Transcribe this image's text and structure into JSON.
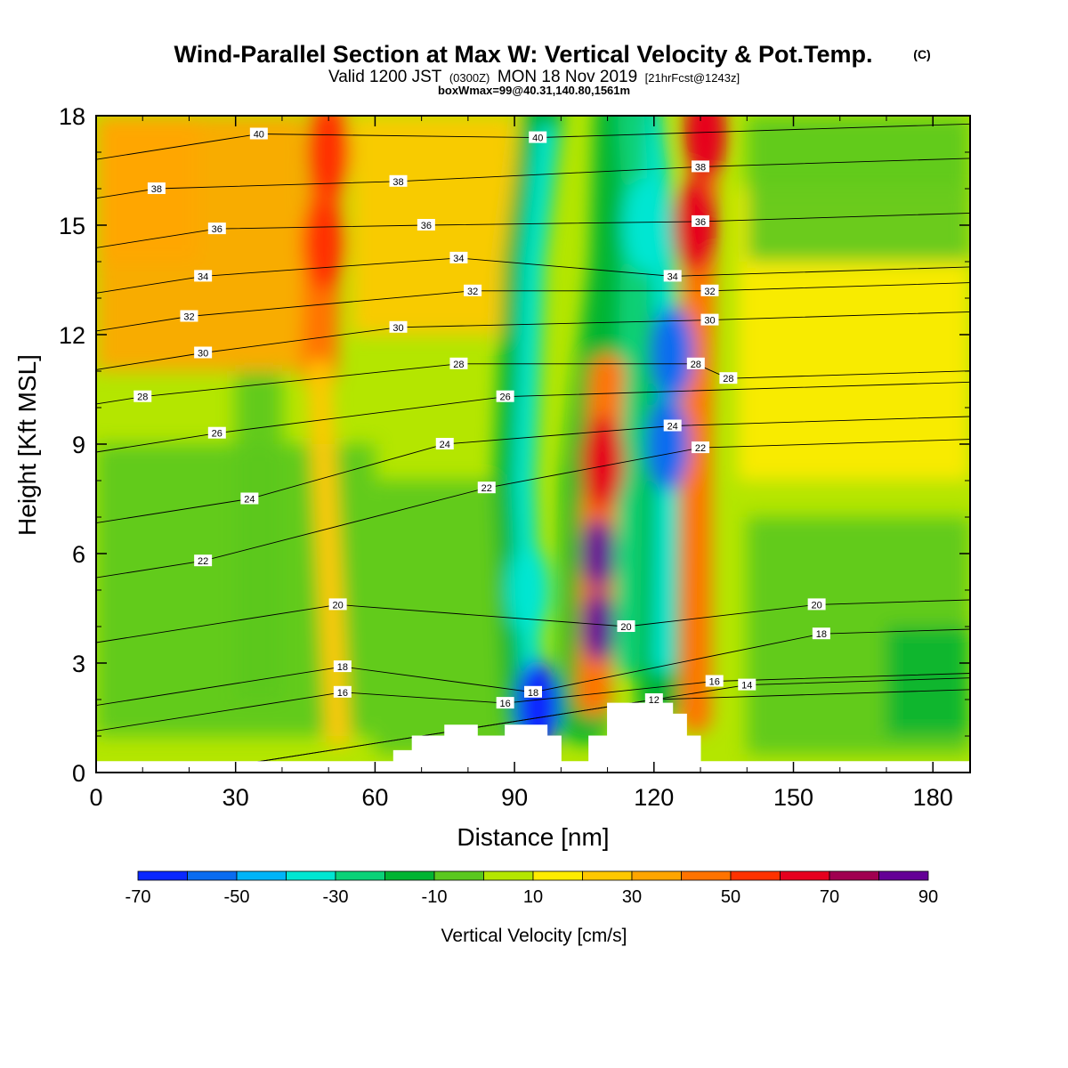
{
  "header": {
    "title_main": "Wind-Parallel Section at Max W: Vertical Velocity & Pot.Temp.",
    "title_copyright": "(C)",
    "valid_prefix": "Valid 1200 JST",
    "valid_utc": "(0300Z)",
    "valid_date": "MON 18 Nov 2019",
    "valid_forecast": "[21hrFcst@1243z]",
    "box_info": "boxWmax=99@40.31,140.80,1561m"
  },
  "chart_data": {
    "type": "heatmap",
    "xlabel": "Distance [nm]",
    "ylabel": "Height [Kft MSL]",
    "xlim": [
      0,
      188
    ],
    "ylim": [
      0,
      18
    ],
    "x_ticks": [
      "0",
      "30",
      "60",
      "90",
      "120",
      "150",
      "180"
    ],
    "y_ticks": [
      "0",
      "3",
      "6",
      "9",
      "12",
      "15",
      "18"
    ],
    "colorbar": {
      "label": "Vertical Velocity [cm/s]",
      "tick_labels": [
        "-70",
        "-50",
        "-30",
        "-10",
        "10",
        "30",
        "50",
        "70",
        "90"
      ],
      "bins": [
        {
          "from": -70,
          "to": -60,
          "color": "#0a28ff"
        },
        {
          "from": -60,
          "to": -50,
          "color": "#0a6cf0"
        },
        {
          "from": -50,
          "to": -40,
          "color": "#00b4f8"
        },
        {
          "from": -40,
          "to": -30,
          "color": "#00e6d2"
        },
        {
          "from": -30,
          "to": -20,
          "color": "#0ad278"
        },
        {
          "from": -20,
          "to": -10,
          "color": "#00b432"
        },
        {
          "from": -10,
          "to": 0,
          "color": "#5ac81e"
        },
        {
          "from": 0,
          "to": 10,
          "color": "#b4e600"
        },
        {
          "from": 10,
          "to": 20,
          "color": "#ffeb00"
        },
        {
          "from": 20,
          "to": 30,
          "color": "#ffc800"
        },
        {
          "from": 30,
          "to": 40,
          "color": "#ffa500"
        },
        {
          "from": 40,
          "to": 50,
          "color": "#ff7300"
        },
        {
          "from": 50,
          "to": 60,
          "color": "#ff3200"
        },
        {
          "from": 60,
          "to": 70,
          "color": "#e6001e"
        },
        {
          "from": 70,
          "to": 80,
          "color": "#a00050"
        },
        {
          "from": 80,
          "to": 90,
          "color": "#640096"
        }
      ]
    },
    "updrafts": [
      {
        "x": 108,
        "y": 4.0,
        "w": 95
      },
      {
        "x": 108,
        "y": 6.0,
        "w": 85
      },
      {
        "x": 109,
        "y": 8.5,
        "w": 60
      },
      {
        "x": 129,
        "y": 15.0,
        "w": 62
      },
      {
        "x": 131,
        "y": 17.5,
        "w": 66
      },
      {
        "x": 49,
        "y": 14.5,
        "w": 55
      },
      {
        "x": 50,
        "y": 17.0,
        "w": 52
      }
    ],
    "downdrafts": [
      {
        "x": 95,
        "y": 1.8,
        "w": -65
      },
      {
        "x": 93,
        "y": 5.0,
        "w": -35
      },
      {
        "x": 124,
        "y": 11.5,
        "w": -60
      },
      {
        "x": 123,
        "y": 9.0,
        "w": -55
      },
      {
        "x": 118,
        "y": 15.0,
        "w": -35
      }
    ],
    "theta_labels": [
      {
        "v": "40",
        "x": 35,
        "y": 17.5
      },
      {
        "v": "40",
        "x": 95,
        "y": 17.4
      },
      {
        "v": "38",
        "x": 13,
        "y": 16.0
      },
      {
        "v": "38",
        "x": 65,
        "y": 16.2
      },
      {
        "v": "38",
        "x": 130,
        "y": 16.6
      },
      {
        "v": "36",
        "x": 26,
        "y": 14.9
      },
      {
        "v": "36",
        "x": 71,
        "y": 15.0
      },
      {
        "v": "36",
        "x": 130,
        "y": 15.1
      },
      {
        "v": "34",
        "x": 23,
        "y": 13.6
      },
      {
        "v": "34",
        "x": 78,
        "y": 14.1
      },
      {
        "v": "34",
        "x": 124,
        "y": 13.6
      },
      {
        "v": "32",
        "x": 20,
        "y": 12.5
      },
      {
        "v": "32",
        "x": 81,
        "y": 13.2
      },
      {
        "v": "32",
        "x": 132,
        "y": 13.2
      },
      {
        "v": "30",
        "x": 23,
        "y": 11.5
      },
      {
        "v": "30",
        "x": 65,
        "y": 12.2
      },
      {
        "v": "30",
        "x": 132,
        "y": 12.4
      },
      {
        "v": "28",
        "x": 10,
        "y": 10.3
      },
      {
        "v": "28",
        "x": 78,
        "y": 11.2
      },
      {
        "v": "28",
        "x": 129,
        "y": 11.2
      },
      {
        "v": "28",
        "x": 136,
        "y": 10.8
      },
      {
        "v": "26",
        "x": 26,
        "y": 9.3
      },
      {
        "v": "26",
        "x": 88,
        "y": 10.3
      },
      {
        "v": "24",
        "x": 75,
        "y": 9.0
      },
      {
        "v": "24",
        "x": 124,
        "y": 9.5
      },
      {
        "v": "24",
        "x": 33,
        "y": 7.5
      },
      {
        "v": "22",
        "x": 84,
        "y": 7.8
      },
      {
        "v": "22",
        "x": 130,
        "y": 8.9
      },
      {
        "v": "22",
        "x": 23,
        "y": 5.8
      },
      {
        "v": "20",
        "x": 52,
        "y": 4.6
      },
      {
        "v": "20",
        "x": 114,
        "y": 4.0
      },
      {
        "v": "20",
        "x": 155,
        "y": 4.6
      },
      {
        "v": "18",
        "x": 53,
        "y": 2.9
      },
      {
        "v": "18",
        "x": 94,
        "y": 2.2
      },
      {
        "v": "18",
        "x": 156,
        "y": 3.8
      },
      {
        "v": "16",
        "x": 53,
        "y": 2.2
      },
      {
        "v": "16",
        "x": 88,
        "y": 1.9
      },
      {
        "v": "16",
        "x": 133,
        "y": 2.5
      },
      {
        "v": "14",
        "x": 140,
        "y": 2.4
      },
      {
        "v": "12",
        "x": 120,
        "y": 2.0
      }
    ],
    "terrain": [
      [
        0,
        0.3
      ],
      [
        64,
        0.3
      ],
      [
        64,
        0.6
      ],
      [
        68,
        0.6
      ],
      [
        68,
        1.0
      ],
      [
        75,
        1.0
      ],
      [
        75,
        1.3
      ],
      [
        82,
        1.3
      ],
      [
        82,
        1.0
      ],
      [
        88,
        1.0
      ],
      [
        88,
        1.3
      ],
      [
        97,
        1.3
      ],
      [
        97,
        1.0
      ],
      [
        100,
        1.0
      ],
      [
        100,
        0.3
      ],
      [
        106,
        0.3
      ],
      [
        106,
        1.0
      ],
      [
        110,
        1.0
      ],
      [
        110,
        1.9
      ],
      [
        124,
        1.9
      ],
      [
        124,
        1.6
      ],
      [
        127,
        1.6
      ],
      [
        127,
        1.0
      ],
      [
        130,
        1.0
      ],
      [
        130,
        0.3
      ],
      [
        188,
        0.3
      ]
    ]
  }
}
